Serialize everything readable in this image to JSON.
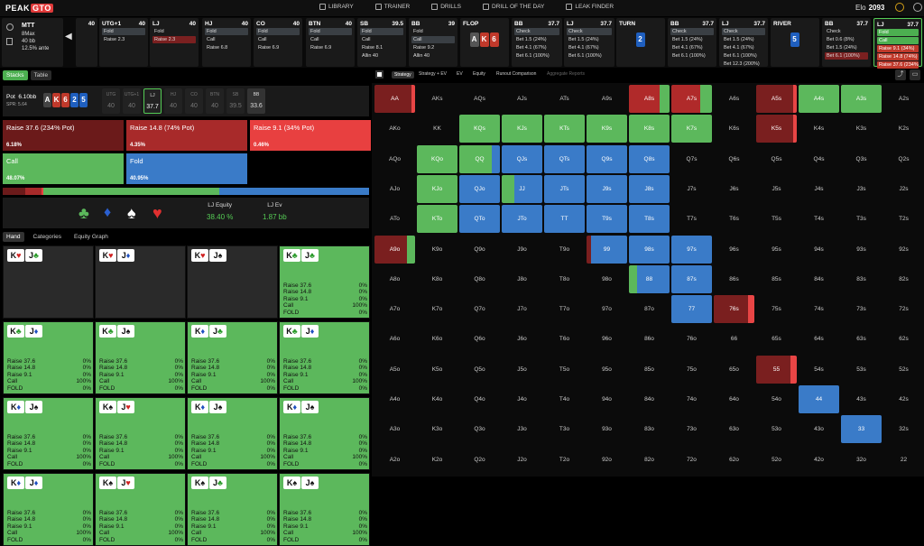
{
  "app": {
    "logo_a": "PEAK",
    "logo_b": "GTO"
  },
  "nav": [
    {
      "label": "LIBRARY",
      "icon": "library-icon"
    },
    {
      "label": "TRAINER",
      "icon": "trainer-icon"
    },
    {
      "label": "DRILLS",
      "icon": "drills-icon"
    },
    {
      "label": "DRILL OF THE DAY",
      "icon": "calendar-icon"
    },
    {
      "label": "LEAK FINDER",
      "icon": "leak-finder-icon"
    }
  ],
  "elo": {
    "label": "Elo",
    "value": "2093"
  },
  "info": {
    "game": "MTT",
    "format": "8Max",
    "stack": "40 bb",
    "ante": "12.5% ante"
  },
  "players": [
    {
      "pos": "",
      "stack": "40",
      "actions": []
    },
    {
      "pos": "UTG+1",
      "stack": "40",
      "actions": [
        {
          "t": "Fold",
          "c": "sel"
        },
        {
          "t": "Raise 2.3",
          "c": ""
        }
      ]
    },
    {
      "pos": "LJ",
      "stack": "40",
      "actions": [
        {
          "t": "Fold",
          "c": ""
        },
        {
          "t": "Raise 2.3",
          "c": "selr"
        }
      ]
    },
    {
      "pos": "HJ",
      "stack": "40",
      "actions": [
        {
          "t": "Fold",
          "c": "sel"
        },
        {
          "t": "Call",
          "c": ""
        },
        {
          "t": "Raise 6.8",
          "c": ""
        }
      ]
    },
    {
      "pos": "CO",
      "stack": "40",
      "actions": [
        {
          "t": "Fold",
          "c": "sel"
        },
        {
          "t": "Call",
          "c": ""
        },
        {
          "t": "Raise 6.9",
          "c": ""
        }
      ]
    },
    {
      "pos": "BTN",
      "stack": "40",
      "actions": [
        {
          "t": "Fold",
          "c": "sel"
        },
        {
          "t": "Call",
          "c": ""
        },
        {
          "t": "Raise 6.9",
          "c": ""
        }
      ]
    },
    {
      "pos": "SB",
      "stack": "39.5",
      "actions": [
        {
          "t": "Fold",
          "c": "sel"
        },
        {
          "t": "Call",
          "c": ""
        },
        {
          "t": "Raise 8.1",
          "c": ""
        },
        {
          "t": "Allin 40",
          "c": ""
        }
      ]
    },
    {
      "pos": "BB",
      "stack": "39",
      "actions": [
        {
          "t": "Fold",
          "c": ""
        },
        {
          "t": "Call",
          "c": "sel"
        },
        {
          "t": "Raise 9.2",
          "c": ""
        },
        {
          "t": "Allin 40",
          "c": ""
        }
      ]
    }
  ],
  "flop": {
    "label": "FLOP",
    "cards": [
      {
        "r": "A",
        "bg": "#555"
      },
      {
        "r": "K",
        "bg": "#c0392b"
      },
      {
        "r": "6",
        "bg": "#c0392b"
      }
    ]
  },
  "flop_bb": {
    "pos": "BB",
    "stack": "37.7",
    "actions": [
      {
        "t": "Check",
        "c": "sel"
      },
      {
        "t": "Bet 1.5 (24%)",
        "c": ""
      },
      {
        "t": "Bet 4.1 (67%)",
        "c": ""
      },
      {
        "t": "Bet 6.1 (100%)",
        "c": ""
      }
    ]
  },
  "flop_lj": {
    "pos": "LJ",
    "stack": "37.7",
    "actions": [
      {
        "t": "Check",
        "c": "sel"
      },
      {
        "t": "Bet 1.5 (24%)",
        "c": ""
      },
      {
        "t": "Bet 4.1 (67%)",
        "c": ""
      },
      {
        "t": "Bet 6.1 (100%)",
        "c": ""
      }
    ]
  },
  "turn": {
    "label": "TURN",
    "card": {
      "r": "2",
      "bg": "#1f5fbf"
    }
  },
  "turn_bb": {
    "pos": "BB",
    "stack": "37.7",
    "actions": [
      {
        "t": "Check",
        "c": "sel"
      },
      {
        "t": "Bet 1.5 (24%)",
        "c": ""
      },
      {
        "t": "Bet 4.1 (67%)",
        "c": ""
      },
      {
        "t": "Bet 6.1 (100%)",
        "c": ""
      }
    ]
  },
  "turn_lj": {
    "pos": "LJ",
    "stack": "37.7",
    "actions": [
      {
        "t": "Check",
        "c": "sel"
      },
      {
        "t": "Bet 1.5 (24%)",
        "c": ""
      },
      {
        "t": "Bet 4.1 (67%)",
        "c": ""
      },
      {
        "t": "Bet 6.1 (100%)",
        "c": ""
      },
      {
        "t": "Bet 12.3 (200%)",
        "c": ""
      }
    ]
  },
  "river": {
    "label": "RIVER",
    "card": {
      "r": "5",
      "bg": "#1f5fbf"
    }
  },
  "river_bb": {
    "pos": "BB",
    "stack": "37.7",
    "actions": [
      {
        "t": "Check",
        "c": ""
      },
      {
        "t": "Bet 0.6 (8%)",
        "c": ""
      },
      {
        "t": "Bet 1.5 (24%)",
        "c": ""
      },
      {
        "t": "Bet 6.1 (100%)",
        "c": "selr"
      }
    ]
  },
  "river_lj": {
    "pos": "LJ",
    "stack": "37.7",
    "actions": [
      {
        "t": "Fold",
        "c": "gr"
      },
      {
        "t": "Call",
        "c": "gr"
      },
      {
        "t": "Raise 9.1 (34%)",
        "c": "rd"
      },
      {
        "t": "Raise 14.8 (74%)",
        "c": "rd"
      },
      {
        "t": "Raise 37.6 (234%)",
        "c": "rd"
      }
    ]
  },
  "left": {
    "tabs": [
      "Stacks",
      "Table"
    ],
    "pot_label": "Pot",
    "pot_value": "6.10bb",
    "spr": "SPR: 5.64",
    "board": [
      {
        "r": "A",
        "bg": "#444"
      },
      {
        "r": "K",
        "bg": "#c0392b"
      },
      {
        "r": "6",
        "bg": "#c0392b"
      },
      {
        "r": "2",
        "bg": "#1f5fbf"
      },
      {
        "r": "5",
        "bg": "#1f5fbf"
      }
    ],
    "seats": [
      {
        "p": "UTG",
        "s": "40",
        "c": ""
      },
      {
        "p": "UTG+1",
        "s": "40",
        "c": ""
      },
      {
        "p": "LJ",
        "s": "37.7",
        "c": "act"
      },
      {
        "p": "HJ",
        "s": "40",
        "c": ""
      },
      {
        "p": "CO",
        "s": "40",
        "c": ""
      },
      {
        "p": "BTN",
        "s": "40",
        "c": ""
      },
      {
        "p": "SB",
        "s": "39.5",
        "c": ""
      },
      {
        "p": "BB",
        "s": "33.6",
        "c": "dk"
      }
    ],
    "strategies": [
      {
        "name": "Raise 37.6 (234% Pot)",
        "pct": "6.18%",
        "bg": "#6b1a1a"
      },
      {
        "name": "Raise 14.8 (74% Pot)",
        "pct": "4.35%",
        "bg": "#a82a2a"
      },
      {
        "name": "Raise 9.1 (34% Pot)",
        "pct": "0.46%",
        "bg": "#e84040"
      },
      {
        "name": "Call",
        "pct": "48.07%",
        "bg": "#5cb85c"
      },
      {
        "name": "Fold",
        "pct": "40.95%",
        "bg": "#3a7bc8"
      }
    ],
    "freq": [
      {
        "w": 6.18,
        "c": "#6b1a1a"
      },
      {
        "w": 4.35,
        "c": "#a82a2a"
      },
      {
        "w": 0.46,
        "c": "#e84040"
      },
      {
        "w": 48.07,
        "c": "#5cb85c"
      },
      {
        "w": 40.95,
        "c": "#3a7bc8"
      }
    ],
    "eq_label": "LJ Equity",
    "eq_value": "38.40 %",
    "ev_label": "LJ Ev",
    "ev_value": "1.87 bb",
    "tabs2": [
      "Hand",
      "Categories",
      "Equity Graph"
    ],
    "hands": [
      {
        "k": "♥",
        "j": "♣",
        "g": false
      },
      {
        "k": "♥",
        "j": "♦",
        "g": false
      },
      {
        "k": "♥",
        "j": "♠",
        "g": false
      },
      {
        "k": "♣",
        "j": "♣",
        "g": true
      },
      {
        "k": "♣",
        "j": "♦",
        "g": true
      },
      {
        "k": "♣",
        "j": "♠",
        "g": true
      },
      {
        "k": "♦",
        "j": "♣",
        "g": true
      },
      {
        "k": "♣",
        "j": "♦",
        "g": true
      },
      {
        "k": "♦",
        "j": "♠",
        "g": true
      },
      {
        "k": "♠",
        "j": "♥",
        "g": true
      },
      {
        "k": "♦",
        "j": "♠",
        "g": true
      },
      {
        "k": "♦",
        "j": "♠",
        "g": true
      },
      {
        "k": "♦",
        "j": "♦",
        "g": true
      },
      {
        "k": "♠",
        "j": "♥",
        "g": true
      },
      {
        "k": "♠",
        "j": "♣",
        "g": true
      },
      {
        "k": "♠",
        "j": "♠",
        "g": true
      }
    ],
    "hand_rows": [
      {
        "l": "Raise 37.6",
        "v": "0%"
      },
      {
        "l": "Raise 14.8",
        "v": "0%"
      },
      {
        "l": "Raise 9.1",
        "v": "0%"
      },
      {
        "l": "Call",
        "v": "100%"
      },
      {
        "l": "FOLD",
        "v": "0%"
      }
    ]
  },
  "right": {
    "tabs": [
      "Strategy",
      "Strategy + EV",
      "EV",
      "Equity",
      "Runout Comparison",
      "Aggregate Reports"
    ]
  },
  "colors": {
    "green": "#5cb85c",
    "blue": "#3a7bc8",
    "r1": "#7a1f1f",
    "r2": "#b02a2a",
    "r3": "#e84545"
  }
}
